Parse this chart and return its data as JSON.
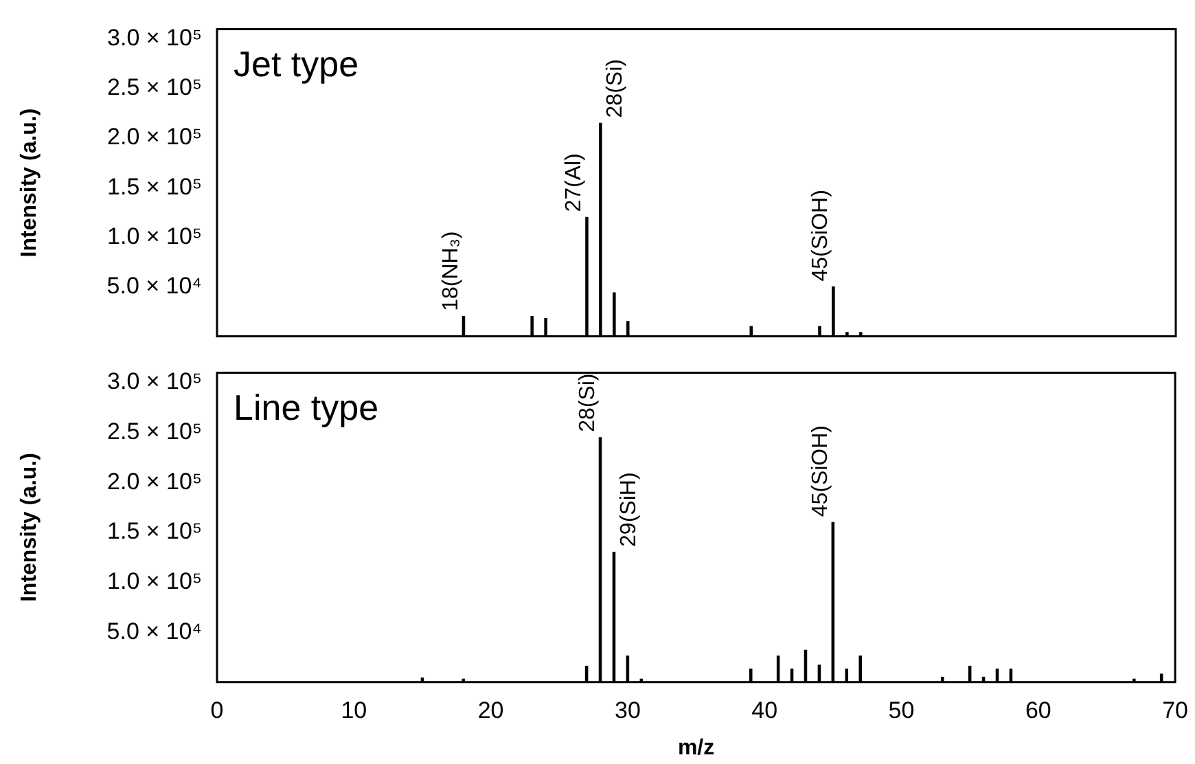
{
  "chart_data": [
    {
      "type": "bar",
      "title": "Jet type",
      "ylabel": "Intensity (a.u.)",
      "x": [
        18,
        23,
        24,
        27,
        28,
        29,
        30,
        39,
        44,
        45,
        46,
        47
      ],
      "values": [
        20000,
        20000,
        18000,
        120000,
        215000,
        44000,
        15000,
        10000,
        10000,
        50000,
        4000,
        4000
      ],
      "color": "#000000",
      "xlim": [
        0,
        70
      ],
      "xticks": [
        0,
        10,
        20,
        30,
        40,
        50,
        60,
        70
      ],
      "ylim": [
        0,
        310000
      ],
      "yticks": [
        {
          "value": 50000,
          "label": "5.0 × 10⁴"
        },
        {
          "value": 100000,
          "label": "1.0 × 10⁵"
        },
        {
          "value": 150000,
          "label": "1.5 × 10⁵"
        },
        {
          "value": 200000,
          "label": "2.0 × 10⁵"
        },
        {
          "value": 250000,
          "label": "2.5 × 10⁵"
        },
        {
          "value": 300000,
          "label": "3.0 × 10⁵"
        }
      ],
      "tick_labels": "y",
      "grid": false,
      "legend": false,
      "annotations": [
        {
          "text": "18(NH₃)",
          "x": 18,
          "y": 20000
        },
        {
          "text": "27(Al)",
          "x": 27,
          "y": 120000
        },
        {
          "text": "28(Si)",
          "x": 28,
          "y": 215000
        },
        {
          "text": "45(SiOH)",
          "x": 45,
          "y": 50000
        }
      ]
    },
    {
      "type": "bar",
      "title": "Line type",
      "ylabel": "Intensity (a.u.)",
      "xlabel": "m/z",
      "x": [
        15,
        18,
        27,
        28,
        29,
        30,
        31,
        39,
        41,
        42,
        43,
        44,
        45,
        46,
        47,
        53,
        55,
        56,
        57,
        58,
        67,
        69
      ],
      "values": [
        4000,
        3000,
        16000,
        245000,
        130000,
        26000,
        3000,
        13000,
        26000,
        13000,
        32000,
        17000,
        160000,
        13000,
        26000,
        5000,
        16000,
        5000,
        13000,
        13000,
        3000,
        8000
      ],
      "color": "#000000",
      "xlim": [
        0,
        70
      ],
      "xticks": [
        0,
        10,
        20,
        30,
        40,
        50,
        60,
        70
      ],
      "ylim": [
        0,
        310000
      ],
      "yticks": [
        {
          "value": 50000,
          "label": "5.0 × 10⁴"
        },
        {
          "value": 100000,
          "label": "1.0 × 10⁵"
        },
        {
          "value": 150000,
          "label": "1.5 × 10⁵"
        },
        {
          "value": 200000,
          "label": "2.0 × 10⁵"
        },
        {
          "value": 250000,
          "label": "2.5 × 10⁵"
        },
        {
          "value": 300000,
          "label": "3.0 × 10⁵"
        }
      ],
      "grid": false,
      "legend": false,
      "annotations": [
        {
          "text": "28(Si)",
          "x": 28,
          "y": 245000
        },
        {
          "text": "29(SiH)",
          "x": 29,
          "y": 130000
        },
        {
          "text": "45(SiOH)",
          "x": 45,
          "y": 160000
        }
      ]
    }
  ]
}
